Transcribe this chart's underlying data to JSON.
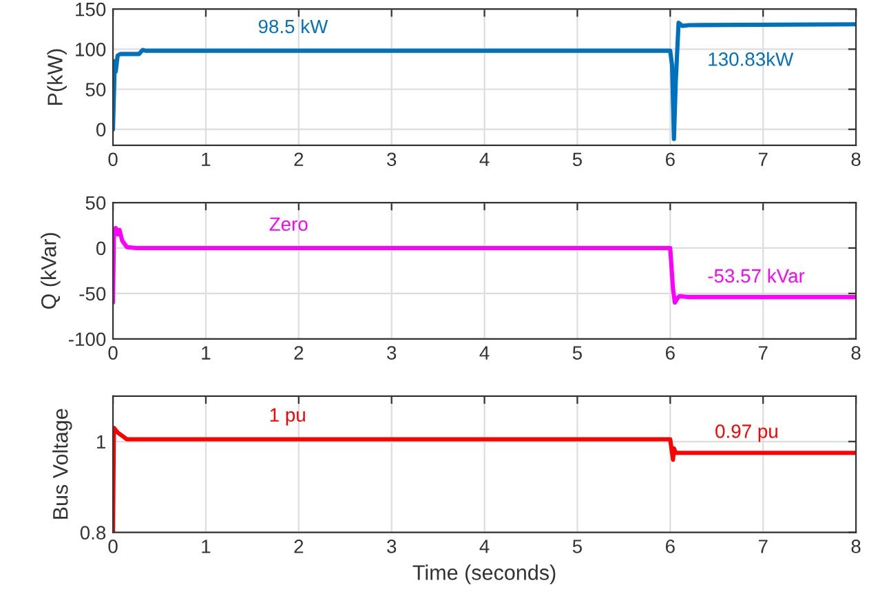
{
  "chart_data": [
    {
      "type": "line",
      "ylabel": "P(kW)",
      "xlim": [
        0,
        8
      ],
      "xticks": [
        0,
        1,
        2,
        3,
        4,
        5,
        6,
        7,
        8
      ],
      "ylim": [
        -20,
        150
      ],
      "yticks": [
        0,
        50,
        100,
        150
      ],
      "grid": true,
      "series": [
        {
          "color": "#0072bd",
          "x": [
            0,
            0.02,
            0.03,
            0.05,
            0.08,
            0.28,
            0.32,
            0.35,
            6.0,
            6.02,
            6.04,
            6.06,
            6.09,
            6.13,
            6.2,
            8
          ],
          "values": [
            0,
            85,
            72,
            92,
            94,
            94,
            99,
            98,
            98,
            80,
            -12,
            60,
            133,
            129,
            130,
            131
          ]
        }
      ],
      "annotations": [
        "98.5 kW",
        "130.83kW"
      ]
    },
    {
      "type": "line",
      "ylabel": "Q (kVar)",
      "xlim": [
        0,
        8
      ],
      "xticks": [
        0,
        1,
        2,
        3,
        4,
        5,
        6,
        7,
        8
      ],
      "ylim": [
        -100,
        50
      ],
      "yticks": [
        -100,
        -50,
        0,
        50
      ],
      "grid": true,
      "series": [
        {
          "color": "#ff00ff",
          "x": [
            0,
            0.01,
            0.03,
            0.05,
            0.07,
            0.1,
            0.15,
            0.25,
            6.0,
            6.03,
            6.05,
            6.08,
            6.1,
            6.2,
            8
          ],
          "values": [
            -60,
            15,
            22,
            15,
            20,
            8,
            1,
            0,
            0,
            -45,
            -60,
            -55,
            -53,
            -54,
            -54
          ]
        }
      ],
      "annotations": [
        "Zero",
        "-53.57 kVar"
      ]
    },
    {
      "type": "line",
      "ylabel": "Bus Voltage",
      "xlabel": "Time (seconds)",
      "xlim": [
        0,
        8
      ],
      "xticks": [
        0,
        1,
        2,
        3,
        4,
        5,
        6,
        7,
        8
      ],
      "ylim": [
        0.8,
        1.1
      ],
      "yticks": [
        0.8,
        1
      ],
      "grid": true,
      "series": [
        {
          "color": "#ff0000",
          "x": [
            0,
            0.01,
            0.05,
            0.15,
            6.0,
            6.03,
            6.04,
            6.06,
            8
          ],
          "values": [
            0.8,
            1.03,
            1.02,
            1.005,
            1.005,
            0.96,
            0.985,
            0.975,
            0.975
          ]
        }
      ],
      "annotations": [
        "1 pu",
        "0.97 pu"
      ]
    }
  ]
}
